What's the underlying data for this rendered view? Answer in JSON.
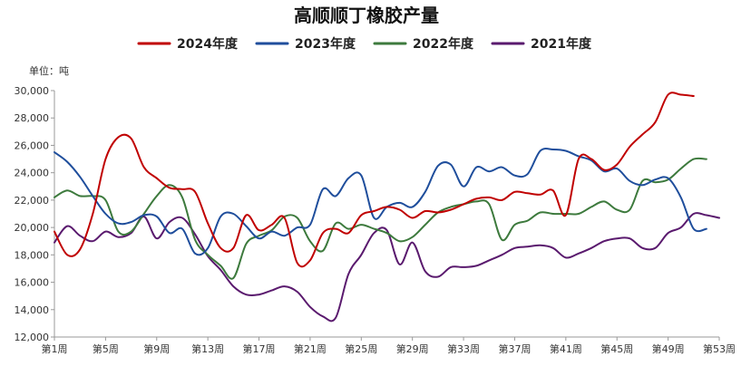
{
  "chart_data": {
    "type": "line",
    "title": "高顺顺丁橡胶产量",
    "unit_label": "单位：吨",
    "ylim": [
      12000,
      30000
    ],
    "y_ticks": [
      12000,
      14000,
      16000,
      18000,
      20000,
      22000,
      24000,
      26000,
      28000,
      30000
    ],
    "y_tick_labels": [
      "12,000",
      "14,000",
      "16,000",
      "18,000",
      "20,000",
      "22,000",
      "24,000",
      "26,000",
      "28,000",
      "30,000"
    ],
    "x_ticks": [
      1,
      5,
      9,
      13,
      17,
      21,
      25,
      29,
      33,
      37,
      41,
      45,
      49,
      53
    ],
    "x_tick_labels": [
      "第1周",
      "第5周",
      "第9周",
      "第13周",
      "第17周",
      "第21周",
      "第25周",
      "第29周",
      "第33周",
      "第37周",
      "第41周",
      "第45周",
      "第49周",
      "第53周"
    ],
    "legend_position": "top",
    "grid": false,
    "series": [
      {
        "name": "2024年度",
        "color": "#c00000",
        "x": [
          1,
          2,
          3,
          4,
          5,
          6,
          7,
          8,
          9,
          10,
          11,
          12,
          13,
          14,
          15,
          16,
          17,
          18,
          19,
          20,
          21,
          22,
          23,
          24,
          25,
          26,
          27,
          28,
          29,
          30,
          31,
          32,
          33,
          34,
          35,
          36,
          37,
          38,
          39,
          40,
          41,
          42,
          43,
          44,
          45,
          46,
          47,
          48,
          49,
          50,
          51
        ],
        "values": [
          19700,
          18000,
          18400,
          21000,
          25000,
          26600,
          26500,
          24400,
          23600,
          22900,
          22800,
          22600,
          20300,
          18500,
          18500,
          20900,
          19800,
          20200,
          20700,
          17400,
          17600,
          19600,
          19900,
          19600,
          20900,
          21200,
          21500,
          21300,
          20700,
          21200,
          21100,
          21300,
          21700,
          22100,
          22200,
          22000,
          22600,
          22500,
          22400,
          22700,
          20900,
          25000,
          25000,
          24200,
          24600,
          25900,
          26800,
          27700,
          29700,
          29700,
          29600
        ]
      },
      {
        "name": "2023年度",
        "color": "#1f4e9c",
        "x": [
          1,
          2,
          3,
          4,
          5,
          6,
          7,
          8,
          9,
          10,
          11,
          12,
          13,
          14,
          15,
          16,
          17,
          18,
          19,
          20,
          21,
          22,
          23,
          24,
          25,
          26,
          27,
          28,
          29,
          30,
          31,
          32,
          33,
          34,
          35,
          36,
          37,
          38,
          39,
          40,
          41,
          42,
          43,
          44,
          45,
          46,
          47,
          48,
          49,
          50,
          51,
          52
        ],
        "values": [
          25500,
          24800,
          23700,
          22300,
          21000,
          20300,
          20400,
          20900,
          20800,
          19600,
          19900,
          18100,
          18500,
          20800,
          21000,
          20100,
          19200,
          19700,
          19400,
          20000,
          20200,
          22800,
          22300,
          23600,
          23800,
          20700,
          21500,
          21800,
          21500,
          22600,
          24500,
          24600,
          23000,
          24400,
          24100,
          24400,
          23800,
          23900,
          25600,
          25700,
          25600,
          25200,
          24900,
          24100,
          24300,
          23400,
          23100,
          23500,
          23600,
          22200,
          19900,
          19900
        ]
      },
      {
        "name": "2022年度",
        "color": "#3d7a3d",
        "x": [
          1,
          2,
          3,
          4,
          5,
          6,
          7,
          8,
          9,
          10,
          11,
          12,
          13,
          14,
          15,
          16,
          17,
          18,
          19,
          20,
          21,
          22,
          23,
          24,
          25,
          26,
          27,
          28,
          29,
          30,
          31,
          32,
          33,
          34,
          35,
          36,
          37,
          38,
          39,
          40,
          41,
          42,
          43,
          44,
          45,
          46,
          47,
          48,
          49,
          50,
          51,
          52
        ],
        "values": [
          22200,
          22700,
          22300,
          22300,
          22000,
          19700,
          19700,
          21000,
          22300,
          23100,
          22200,
          19100,
          18000,
          17200,
          16300,
          18800,
          19400,
          19800,
          20800,
          20700,
          19000,
          18300,
          20300,
          19900,
          20200,
          19900,
          19600,
          19000,
          19300,
          20200,
          21100,
          21500,
          21700,
          21900,
          21700,
          19100,
          20200,
          20500,
          21100,
          21000,
          21000,
          21000,
          21500,
          21900,
          21300,
          21300,
          23400,
          23300,
          23500,
          24300,
          25000,
          25000
        ]
      },
      {
        "name": "2021年度",
        "color": "#5a1a6e",
        "x": [
          1,
          2,
          3,
          4,
          5,
          6,
          7,
          8,
          9,
          10,
          11,
          12,
          13,
          14,
          15,
          16,
          17,
          18,
          19,
          20,
          21,
          22,
          23,
          24,
          25,
          26,
          27,
          28,
          29,
          30,
          31,
          32,
          33,
          34,
          35,
          36,
          37,
          38,
          39,
          40,
          41,
          42,
          43,
          44,
          45,
          46,
          47,
          48,
          49,
          50,
          51,
          52,
          53
        ],
        "values": [
          18900,
          20100,
          19400,
          19000,
          19700,
          19300,
          19600,
          20800,
          19200,
          20400,
          20700,
          19500,
          17900,
          16900,
          15700,
          15100,
          15100,
          15400,
          15700,
          15300,
          14200,
          13500,
          13400,
          16600,
          18000,
          19600,
          19800,
          17300,
          18900,
          16800,
          16400,
          17100,
          17100,
          17200,
          17600,
          18000,
          18500,
          18600,
          18700,
          18500,
          17800,
          18100,
          18500,
          19000,
          19200,
          19200,
          18500,
          18500,
          19600,
          20000,
          21000,
          20900,
          20700
        ]
      }
    ]
  }
}
